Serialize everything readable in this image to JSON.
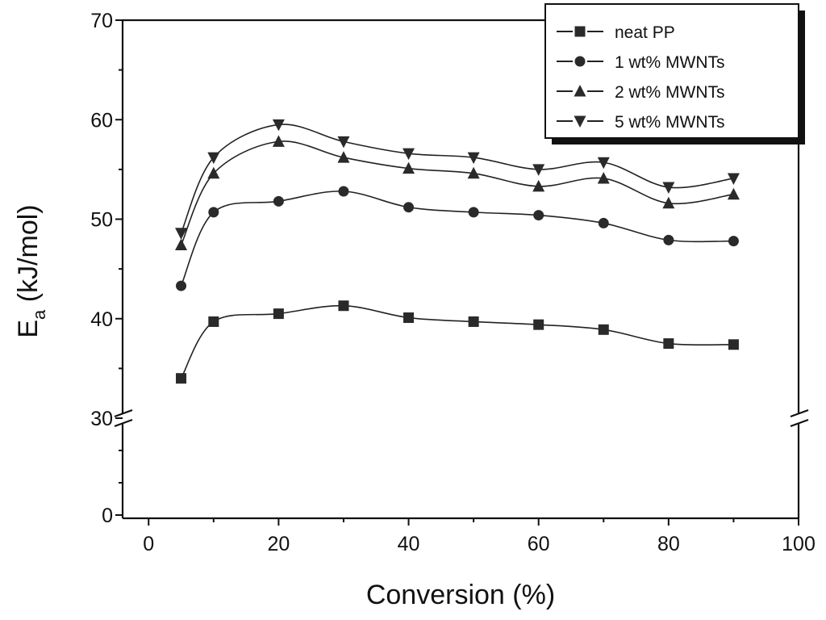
{
  "chart_data": {
    "type": "line",
    "xlabel": "Conversion (%)",
    "ylabel_main": "E",
    "ylabel_sub": "a",
    "ylabel_unit": " (kJ/mol)",
    "x_ticks": [
      0,
      20,
      40,
      60,
      80,
      100
    ],
    "y_ticks_lower": [
      0
    ],
    "y_ticks_upper": [
      30,
      40,
      50,
      60,
      70
    ],
    "xlim": [
      -4,
      100
    ],
    "ylim_lower": [
      -1,
      30
    ],
    "ylim_upper": [
      30,
      70
    ],
    "axis_break": "y between lower and upper segments at 30",
    "grid": false,
    "legend_position": "top-right",
    "series": [
      {
        "name": "neat PP",
        "marker": "square",
        "x": [
          5,
          10,
          20,
          30,
          40,
          50,
          60,
          70,
          80,
          90
        ],
        "y": [
          34.0,
          39.7,
          40.5,
          41.3,
          40.1,
          39.7,
          39.4,
          38.9,
          37.5,
          37.4
        ]
      },
      {
        "name": "1 wt% MWNTs",
        "marker": "circle",
        "x": [
          5,
          10,
          20,
          30,
          40,
          50,
          60,
          70,
          80,
          90
        ],
        "y": [
          43.3,
          50.7,
          51.8,
          52.8,
          51.2,
          50.7,
          50.4,
          49.6,
          47.9,
          47.8
        ]
      },
      {
        "name": "2 wt% MWNTs",
        "marker": "triangle-up",
        "x": [
          5,
          10,
          20,
          30,
          40,
          50,
          60,
          70,
          80,
          90
        ],
        "y": [
          47.4,
          54.6,
          57.8,
          56.2,
          55.1,
          54.6,
          53.3,
          54.1,
          51.6,
          52.5
        ]
      },
      {
        "name": "5 wt% MWNTs",
        "marker": "triangle-down",
        "x": [
          5,
          10,
          20,
          30,
          40,
          50,
          60,
          70,
          80,
          90
        ],
        "y": [
          48.6,
          56.2,
          59.5,
          57.8,
          56.6,
          56.2,
          55.0,
          55.7,
          53.2,
          54.1
        ]
      }
    ]
  }
}
